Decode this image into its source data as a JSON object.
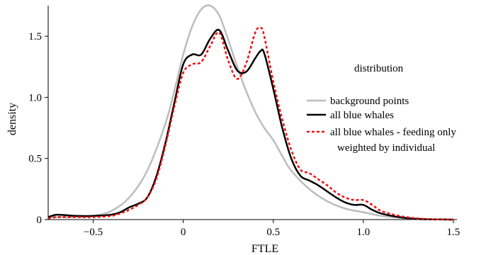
{
  "chart_data": {
    "type": "line",
    "xlabel": "FTLE",
    "ylabel": "density",
    "xlim": [
      -0.75,
      1.52
    ],
    "ylim": [
      0,
      1.75
    ],
    "xticks": [
      -0.5,
      0,
      0.5,
      1.0,
      1.5
    ],
    "xtick_labels": [
      "−0.5",
      "0",
      "0.5",
      "1.0",
      "1.5"
    ],
    "yticks": [
      0,
      0.5,
      1.0,
      1.5
    ],
    "ytick_labels": [
      "0",
      "0.5",
      "1.0",
      "1.5"
    ],
    "grid": false,
    "legend": {
      "title": "distribution",
      "placement": "right",
      "extra_line": "weighted by individual"
    },
    "series": [
      {
        "name": "background points",
        "color": "#bdbdbd",
        "dash": "solid",
        "x": [
          -0.75,
          -0.6,
          -0.5,
          -0.4,
          -0.3,
          -0.2,
          -0.1,
          -0.05,
          0,
          0.05,
          0.1,
          0.15,
          0.2,
          0.25,
          0.3,
          0.35,
          0.4,
          0.45,
          0.5,
          0.55,
          0.6,
          0.7,
          0.8,
          0.9,
          1.0,
          1.1,
          1.2,
          1.3,
          1.4,
          1.5
        ],
        "y": [
          0.02,
          0.02,
          0.03,
          0.07,
          0.18,
          0.4,
          0.78,
          1.05,
          1.35,
          1.58,
          1.72,
          1.75,
          1.67,
          1.47,
          1.25,
          1.05,
          0.88,
          0.75,
          0.65,
          0.52,
          0.4,
          0.25,
          0.15,
          0.09,
          0.06,
          0.03,
          0.015,
          0.005,
          0.002,
          0.0
        ]
      },
      {
        "name": "all blue whales",
        "color": "#000000",
        "dash": "solid",
        "x": [
          -0.75,
          -0.7,
          -0.6,
          -0.5,
          -0.4,
          -0.35,
          -0.3,
          -0.25,
          -0.2,
          -0.15,
          -0.1,
          -0.05,
          0,
          0.05,
          0.1,
          0.15,
          0.2,
          0.25,
          0.3,
          0.35,
          0.4,
          0.43,
          0.45,
          0.5,
          0.55,
          0.6,
          0.65,
          0.7,
          0.75,
          0.8,
          0.85,
          0.9,
          0.95,
          1.0,
          1.05,
          1.1,
          1.2,
          1.3,
          1.4,
          1.5
        ],
        "y": [
          0.02,
          0.04,
          0.03,
          0.03,
          0.04,
          0.06,
          0.1,
          0.13,
          0.18,
          0.35,
          0.62,
          0.95,
          1.27,
          1.35,
          1.35,
          1.48,
          1.55,
          1.38,
          1.22,
          1.21,
          1.32,
          1.38,
          1.36,
          1.07,
          0.75,
          0.5,
          0.36,
          0.32,
          0.28,
          0.23,
          0.18,
          0.14,
          0.12,
          0.12,
          0.08,
          0.05,
          0.02,
          0.005,
          0.002,
          0.0
        ]
      },
      {
        "name": "all blue whales - feeding only",
        "color": "#ee1111",
        "dash": "dashed",
        "x": [
          -0.75,
          -0.7,
          -0.6,
          -0.5,
          -0.4,
          -0.35,
          -0.3,
          -0.25,
          -0.2,
          -0.15,
          -0.1,
          -0.05,
          0,
          0.05,
          0.1,
          0.15,
          0.2,
          0.25,
          0.3,
          0.35,
          0.4,
          0.43,
          0.45,
          0.5,
          0.55,
          0.6,
          0.65,
          0.7,
          0.75,
          0.8,
          0.85,
          0.9,
          0.95,
          1.0,
          1.05,
          1.1,
          1.2,
          1.3,
          1.4,
          1.5
        ],
        "y": [
          0.01,
          0.02,
          0.02,
          0.02,
          0.03,
          0.05,
          0.08,
          0.12,
          0.18,
          0.33,
          0.6,
          0.92,
          1.2,
          1.27,
          1.29,
          1.42,
          1.53,
          1.3,
          1.15,
          1.28,
          1.53,
          1.57,
          1.5,
          1.13,
          0.82,
          0.57,
          0.41,
          0.38,
          0.33,
          0.28,
          0.22,
          0.18,
          0.16,
          0.16,
          0.12,
          0.07,
          0.03,
          0.01,
          0.002,
          0.0
        ]
      }
    ]
  }
}
